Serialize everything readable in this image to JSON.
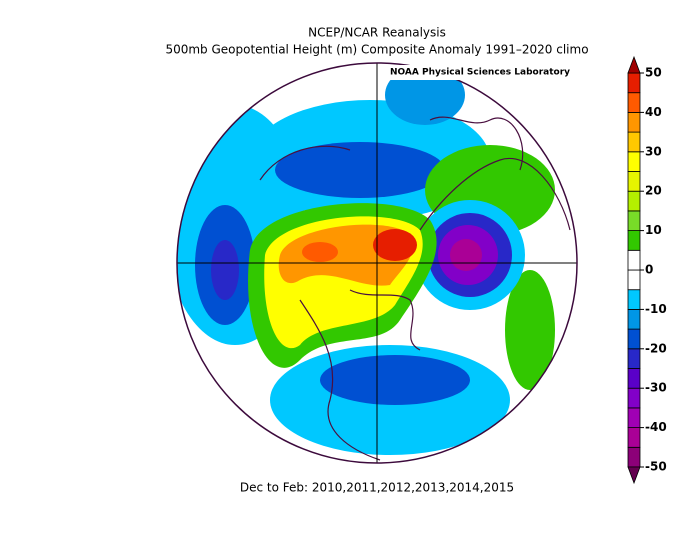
{
  "header": {
    "title": "NCEP/NCAR Reanalysis",
    "subtitle": "500mb Geopotential Height (m) Composite Anomaly 1991–2020 climo",
    "credit": "NOAA Physical Sciences Laboratory"
  },
  "footer": "Dec to Feb: 2010,2011,2012,2013,2014,2015",
  "colorbar": {
    "lim": [
      -50,
      50
    ],
    "ticks": [
      50,
      40,
      30,
      20,
      10,
      0,
      -10,
      -20,
      -30,
      -40,
      -50
    ],
    "under_color": "#640050",
    "over_color": "#a00000",
    "colors": [
      "#8c0078",
      "#aa0096",
      "#a000b4",
      "#8200c8",
      "#5a00c8",
      "#2828c8",
      "#0050d2",
      "#0096e6",
      "#00c8ff",
      "#ffffff",
      "#ffffff",
      "#32c800",
      "#78dc28",
      "#b4f000",
      "#e6f500",
      "#ffff00",
      "#ffc800",
      "#ff9600",
      "#ff5a00",
      "#e61e00"
    ]
  }
}
